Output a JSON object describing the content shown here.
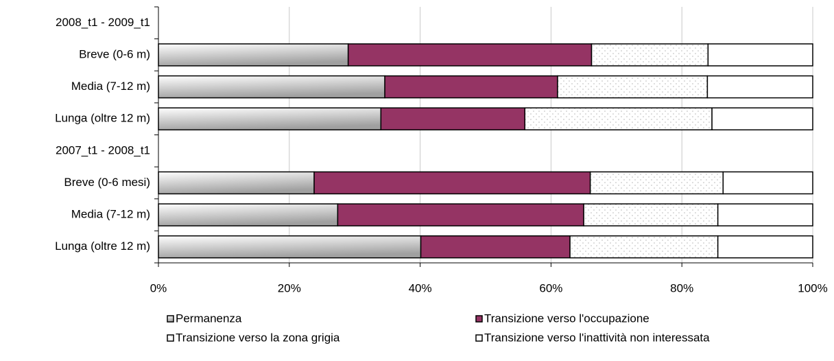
{
  "chart_data": {
    "type": "stacked_bar_horizontal",
    "categories": [
      "2008_t1 - 2009_t1",
      "Breve (0-6 m)",
      "Media (7-12 m)",
      "Lunga (oltre 12 m)",
      "2007_t1 - 2008_t1",
      "Breve (0-6 mesi)",
      "Media (7-12 m)",
      "Lunga (oltre 12 m)"
    ],
    "series": [
      {
        "name": "Permanenza",
        "color": "#a0a0a0",
        "values": [
          null,
          29.0,
          34.6,
          34.0,
          null,
          23.8,
          27.4,
          40.1
        ]
      },
      {
        "name": "Transizione verso l'occupazione",
        "color": "#953464",
        "values": [
          null,
          37.2,
          26.4,
          22.0,
          null,
          42.2,
          37.6,
          22.8
        ]
      },
      {
        "name": "Transizione verso la zona grigia",
        "color": "#b8b8b8",
        "values": [
          null,
          17.8,
          22.9,
          28.6,
          null,
          20.3,
          20.5,
          22.6
        ]
      },
      {
        "name": "Transizione verso l'inattività non interessata",
        "color": "#ffffff",
        "values": [
          null,
          16.0,
          16.1,
          15.4,
          null,
          13.7,
          14.5,
          14.5
        ]
      }
    ],
    "xlim": [
      0,
      100
    ],
    "xticks": [
      {
        "value": 0,
        "label": "0%"
      },
      {
        "value": 20,
        "label": "20%"
      },
      {
        "value": 40,
        "label": "40%"
      },
      {
        "value": 60,
        "label": "60%"
      },
      {
        "value": 80,
        "label": "80%"
      },
      {
        "value": 100,
        "label": "100%"
      }
    ],
    "grid": true
  }
}
